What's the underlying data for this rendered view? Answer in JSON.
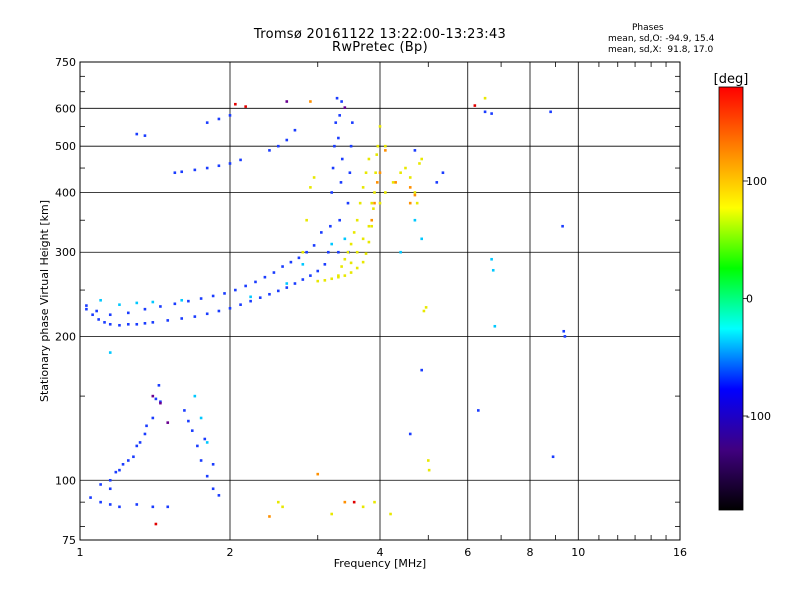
{
  "title_line1": "Tromsø 20161122 13:22:00-13:23:43",
  "title_line2": "RwPretec (Bp)",
  "stats": {
    "heading": "Phases",
    "line_o": "mean, sd,O: -94.9, 15.4",
    "line_x": "mean, sd,X:  91.8, 17.0"
  },
  "chart_data": {
    "type": "scatter",
    "xlabel": "Frequency [MHz]",
    "ylabel": "Stationary phase Virtual Height [km]",
    "x_scale": "log",
    "y_scale": "log",
    "xlim": [
      1,
      16
    ],
    "ylim": [
      75,
      750
    ],
    "x_ticks": [
      1,
      2,
      4,
      6,
      8,
      10,
      16
    ],
    "y_ticks": [
      75,
      100,
      200,
      300,
      400,
      500,
      600,
      750
    ],
    "grid": true,
    "colorbar": {
      "label": "[deg]",
      "range": [
        -180,
        180
      ],
      "ticks": [
        100,
        0,
        -100
      ],
      "colors": [
        "#ff0000",
        "#ff8000",
        "#ffff00",
        "#00ff00",
        "#00ffff",
        "#0000ff",
        "#400080",
        "#000000"
      ]
    },
    "series": [
      {
        "color": "#1a3cff",
        "points": [
          [
            1.03,
            228
          ],
          [
            1.06,
            222
          ],
          [
            1.09,
            217
          ],
          [
            1.12,
            214
          ],
          [
            1.15,
            212
          ],
          [
            1.2,
            211
          ],
          [
            1.25,
            212
          ],
          [
            1.3,
            212
          ],
          [
            1.35,
            213
          ],
          [
            1.4,
            214
          ],
          [
            1.5,
            216
          ],
          [
            1.6,
            218
          ],
          [
            1.7,
            220
          ],
          [
            1.8,
            223
          ],
          [
            1.9,
            226
          ],
          [
            2.0,
            229
          ],
          [
            2.1,
            233
          ],
          [
            2.2,
            237
          ],
          [
            2.3,
            241
          ],
          [
            2.4,
            245
          ],
          [
            2.5,
            249
          ],
          [
            2.6,
            253
          ],
          [
            2.7,
            258
          ],
          [
            2.8,
            263
          ],
          [
            2.9,
            268
          ],
          [
            3.0,
            274
          ],
          [
            3.1,
            283
          ],
          [
            3.15,
            300
          ],
          [
            3.18,
            340
          ],
          [
            3.2,
            400
          ],
          [
            3.22,
            450
          ],
          [
            3.24,
            500
          ],
          [
            3.26,
            560
          ],
          [
            3.28,
            630
          ],
          [
            1.03,
            232
          ],
          [
            1.08,
            226
          ],
          [
            1.15,
            222
          ],
          [
            1.25,
            224
          ],
          [
            1.35,
            228
          ],
          [
            1.45,
            231
          ],
          [
            1.55,
            234
          ],
          [
            1.65,
            237
          ],
          [
            1.75,
            240
          ],
          [
            1.85,
            243
          ],
          [
            1.95,
            246
          ],
          [
            2.05,
            250
          ],
          [
            2.15,
            255
          ],
          [
            2.25,
            260
          ],
          [
            2.35,
            266
          ],
          [
            2.45,
            272
          ],
          [
            2.55,
            280
          ],
          [
            2.65,
            286
          ],
          [
            2.75,
            292
          ],
          [
            2.85,
            300
          ],
          [
            2.95,
            310
          ],
          [
            3.05,
            330
          ],
          [
            3.3,
            300
          ],
          [
            3.32,
            350
          ],
          [
            3.34,
            420
          ],
          [
            3.36,
            470
          ],
          [
            3.3,
            520
          ],
          [
            3.32,
            580
          ],
          [
            3.35,
            620
          ],
          [
            3.45,
            380
          ],
          [
            3.48,
            440
          ],
          [
            3.5,
            500
          ],
          [
            3.52,
            560
          ],
          [
            3.46,
            300
          ],
          [
            1.3,
            530
          ],
          [
            1.35,
            526
          ],
          [
            1.55,
            440
          ],
          [
            1.6,
            442
          ],
          [
            1.7,
            446
          ],
          [
            1.8,
            450
          ],
          [
            1.9,
            455
          ],
          [
            2.0,
            460
          ],
          [
            2.1,
            468
          ],
          [
            2.4,
            490
          ],
          [
            2.5,
            500
          ],
          [
            2.6,
            515
          ],
          [
            2.7,
            540
          ],
          [
            1.8,
            560
          ],
          [
            1.9,
            570
          ],
          [
            2.0,
            580
          ],
          [
            1.05,
            92
          ],
          [
            1.1,
            90
          ],
          [
            1.15,
            89
          ],
          [
            1.2,
            88
          ],
          [
            1.3,
            89
          ],
          [
            1.4,
            88
          ],
          [
            1.5,
            88
          ],
          [
            1.15,
            100
          ],
          [
            1.2,
            105
          ],
          [
            1.25,
            110
          ],
          [
            1.3,
            118
          ],
          [
            1.35,
            125
          ],
          [
            1.4,
            135
          ],
          [
            1.42,
            148
          ],
          [
            1.44,
            158
          ],
          [
            1.1,
            98
          ],
          [
            1.15,
            96
          ],
          [
            1.18,
            104
          ],
          [
            1.22,
            108
          ],
          [
            1.28,
            112
          ],
          [
            1.32,
            120
          ],
          [
            1.36,
            130
          ],
          [
            1.45,
            146
          ],
          [
            1.62,
            140
          ],
          [
            1.65,
            133
          ],
          [
            1.68,
            127
          ],
          [
            1.72,
            118
          ],
          [
            1.75,
            110
          ],
          [
            1.8,
            102
          ],
          [
            1.85,
            96
          ],
          [
            1.9,
            93
          ],
          [
            1.78,
            122
          ],
          [
            1.85,
            108
          ],
          [
            4.7,
            490
          ],
          [
            5.2,
            420
          ],
          [
            5.35,
            440
          ],
          [
            6.5,
            590
          ],
          [
            8.8,
            590
          ],
          [
            9.3,
            340
          ],
          [
            9.35,
            205
          ],
          [
            9.4,
            200
          ],
          [
            8.9,
            112
          ],
          [
            4.6,
            125
          ],
          [
            4.85,
            170
          ],
          [
            6.3,
            140
          ],
          [
            6.7,
            585
          ]
        ]
      },
      {
        "color": "#00c8ff",
        "points": [
          [
            1.1,
            238
          ],
          [
            1.2,
            233
          ],
          [
            1.3,
            235
          ],
          [
            1.4,
            236
          ],
          [
            1.6,
            238
          ],
          [
            2.2,
            242
          ],
          [
            2.6,
            258
          ],
          [
            2.8,
            283
          ],
          [
            3.2,
            312
          ],
          [
            3.4,
            320
          ],
          [
            1.7,
            150
          ],
          [
            1.75,
            135
          ],
          [
            1.8,
            120
          ],
          [
            6.7,
            290
          ],
          [
            6.75,
            275
          ],
          [
            6.8,
            210
          ],
          [
            4.85,
            320
          ],
          [
            4.7,
            350
          ],
          [
            1.15,
            185
          ],
          [
            4.4,
            300
          ]
        ]
      },
      {
        "color": "#e8e800",
        "points": [
          [
            3.0,
            261
          ],
          [
            3.1,
            262
          ],
          [
            3.2,
            264
          ],
          [
            3.3,
            266
          ],
          [
            3.4,
            268
          ],
          [
            3.5,
            272
          ],
          [
            3.6,
            278
          ],
          [
            3.7,
            286
          ],
          [
            3.75,
            298
          ],
          [
            3.8,
            315
          ],
          [
            3.85,
            340
          ],
          [
            3.88,
            370
          ],
          [
            3.9,
            400
          ],
          [
            3.92,
            440
          ],
          [
            3.94,
            480
          ],
          [
            3.96,
            500
          ],
          [
            3.35,
            280
          ],
          [
            3.4,
            290
          ],
          [
            3.45,
            300
          ],
          [
            3.5,
            312
          ],
          [
            3.55,
            330
          ],
          [
            3.6,
            350
          ],
          [
            3.65,
            380
          ],
          [
            3.7,
            410
          ],
          [
            3.75,
            440
          ],
          [
            3.8,
            470
          ],
          [
            3.3,
            268
          ],
          [
            3.5,
            285
          ],
          [
            3.6,
            300
          ],
          [
            3.7,
            320
          ],
          [
            3.8,
            340
          ],
          [
            3.85,
            380
          ],
          [
            2.8,
            300
          ],
          [
            2.85,
            350
          ],
          [
            2.9,
            410
          ],
          [
            2.95,
            430
          ],
          [
            4.0,
            380
          ],
          [
            4.1,
            400
          ],
          [
            4.25,
            420
          ],
          [
            4.4,
            440
          ],
          [
            4.5,
            450
          ],
          [
            4.6,
            430
          ],
          [
            4.7,
            400
          ],
          [
            4.75,
            380
          ],
          [
            4.8,
            460
          ],
          [
            4.85,
            470
          ],
          [
            4.0,
            550
          ],
          [
            4.1,
            500
          ],
          [
            4.9,
            226
          ],
          [
            4.95,
            230
          ],
          [
            5.0,
            110
          ],
          [
            5.02,
            105
          ],
          [
            4.2,
            85
          ],
          [
            3.9,
            90
          ],
          [
            3.7,
            88
          ],
          [
            2.5,
            90
          ],
          [
            2.55,
            88
          ],
          [
            3.2,
            85
          ],
          [
            6.5,
            630
          ]
        ]
      },
      {
        "color": "#ff9000",
        "points": [
          [
            3.85,
            350
          ],
          [
            3.9,
            380
          ],
          [
            3.95,
            420
          ],
          [
            4.0,
            440
          ],
          [
            4.3,
            420
          ],
          [
            4.6,
            380
          ],
          [
            4.7,
            395
          ],
          [
            4.6,
            410
          ],
          [
            2.9,
            620
          ],
          [
            3.4,
            90
          ],
          [
            2.4,
            84
          ],
          [
            3.0,
            103
          ],
          [
            4.1,
            490
          ]
        ]
      },
      {
        "color": "#e00000",
        "points": [
          [
            2.05,
            612
          ],
          [
            2.15,
            605
          ],
          [
            1.42,
            81
          ],
          [
            3.55,
            90
          ],
          [
            6.2,
            608
          ]
        ]
      },
      {
        "color": "#6a0090",
        "points": [
          [
            1.45,
            145
          ],
          [
            1.5,
            132
          ],
          [
            2.6,
            620
          ],
          [
            1.4,
            150
          ],
          [
            3.4,
            602
          ]
        ]
      }
    ]
  }
}
